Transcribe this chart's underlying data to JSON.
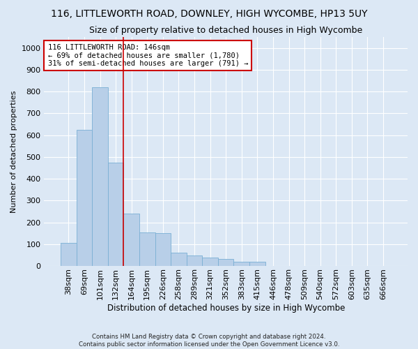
{
  "title": "116, LITTLEWORTH ROAD, DOWNLEY, HIGH WYCOMBE, HP13 5UY",
  "subtitle": "Size of property relative to detached houses in High Wycombe",
  "xlabel": "Distribution of detached houses by size in High Wycombe",
  "ylabel": "Number of detached properties",
  "footer_line1": "Contains HM Land Registry data © Crown copyright and database right 2024.",
  "footer_line2": "Contains public sector information licensed under the Open Government Licence v3.0.",
  "categories": [
    "38sqm",
    "69sqm",
    "101sqm",
    "132sqm",
    "164sqm",
    "195sqm",
    "226sqm",
    "258sqm",
    "289sqm",
    "321sqm",
    "352sqm",
    "383sqm",
    "415sqm",
    "446sqm",
    "478sqm",
    "509sqm",
    "540sqm",
    "572sqm",
    "603sqm",
    "635sqm",
    "666sqm"
  ],
  "values": [
    107,
    625,
    820,
    475,
    240,
    155,
    150,
    62,
    48,
    38,
    32,
    18,
    18,
    0,
    0,
    0,
    0,
    0,
    0,
    0,
    0
  ],
  "bar_color": "#b8cfe8",
  "bar_edgecolor": "#7aafd4",
  "vline_x_index": 3,
  "vline_color": "#cc0000",
  "annotation_text": "116 LITTLEWORTH ROAD: 146sqm\n← 69% of detached houses are smaller (1,780)\n31% of semi-detached houses are larger (791) →",
  "annotation_box_facecolor": "#ffffff",
  "annotation_box_edgecolor": "#cc0000",
  "ylim": [
    0,
    1050
  ],
  "yticks": [
    0,
    100,
    200,
    300,
    400,
    500,
    600,
    700,
    800,
    900,
    1000
  ],
  "bg_color": "#dce8f5",
  "axes_bg_color": "#dce8f5",
  "grid_color": "#ffffff",
  "title_fontsize": 10,
  "subtitle_fontsize": 9,
  "xlabel_fontsize": 8.5,
  "ylabel_fontsize": 8,
  "tick_fontsize": 8,
  "annot_fontsize": 7.5
}
